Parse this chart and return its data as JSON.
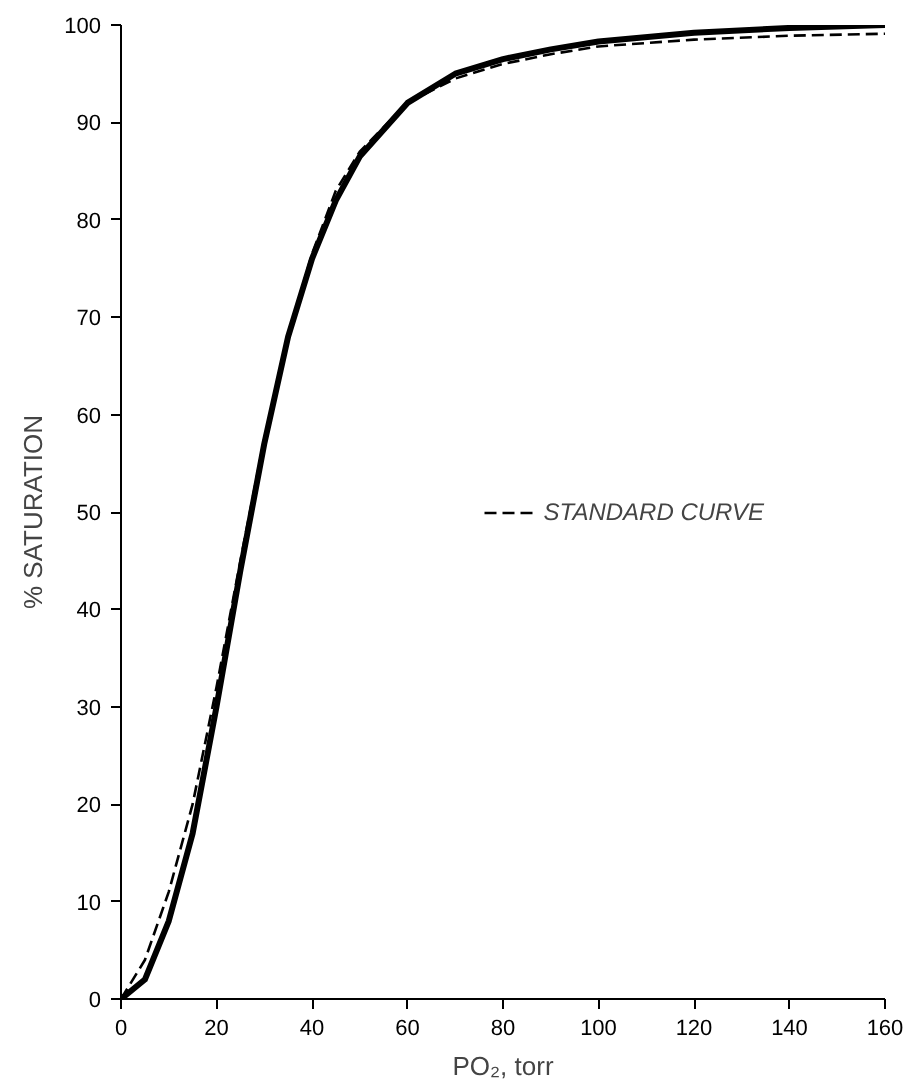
{
  "chart_data": {
    "type": "line",
    "xlabel": "PO₂, torr",
    "ylabel": "% SATURATION",
    "x": [
      0,
      5,
      10,
      15,
      20,
      25,
      30,
      35,
      40,
      45,
      50,
      60,
      70,
      80,
      90,
      100,
      120,
      140,
      160
    ],
    "series": [
      {
        "color": "#000000",
        "line_style": "solid",
        "values": [
          0,
          2,
          8,
          17,
          30,
          44,
          57,
          68,
          76,
          82,
          86.5,
          92,
          95,
          96.5,
          97.5,
          98.3,
          99.2,
          99.7,
          100
        ]
      },
      {
        "name": "STANDARD CURVE",
        "color": "#000000",
        "line_style": "dashed",
        "values": [
          0,
          4,
          11,
          20,
          32,
          45,
          57.5,
          68,
          76.5,
          83,
          87,
          92,
          94.5,
          96,
          97,
          97.8,
          98.5,
          98.9,
          99.1
        ]
      }
    ],
    "xlim": [
      0,
      160
    ],
    "xticks": [
      0,
      20,
      40,
      60,
      80,
      100,
      120,
      140,
      160
    ],
    "ylim": [
      0,
      100
    ],
    "yticks": [
      0,
      10,
      20,
      30,
      40,
      50,
      60,
      70,
      80,
      90,
      100
    ],
    "grid": false,
    "legend": "right",
    "marker": "none"
  }
}
